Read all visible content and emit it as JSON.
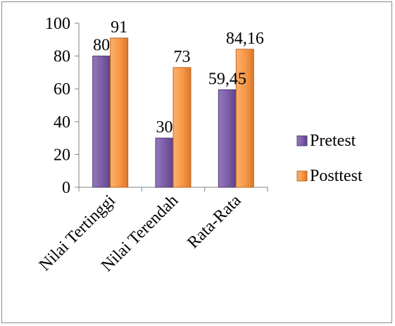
{
  "chart_data": {
    "type": "bar",
    "categories": [
      "Nilai Tertinggi",
      "Nilai Terendah",
      "Rata-Rata"
    ],
    "series": [
      {
        "name": "Pretest",
        "values": [
          80,
          30,
          59.45
        ],
        "labels": [
          "80",
          "30",
          "59,45"
        ],
        "color": "#7f5fa8"
      },
      {
        "name": "Posttest",
        "values": [
          91,
          73,
          84.16
        ],
        "labels": [
          "91",
          "73",
          "84,16"
        ],
        "color": "#f79646"
      }
    ],
    "ylim": [
      0,
      100
    ],
    "yticks": [
      "0",
      "20",
      "40",
      "60",
      "80",
      "100"
    ],
    "grid": false,
    "legend": "right"
  }
}
